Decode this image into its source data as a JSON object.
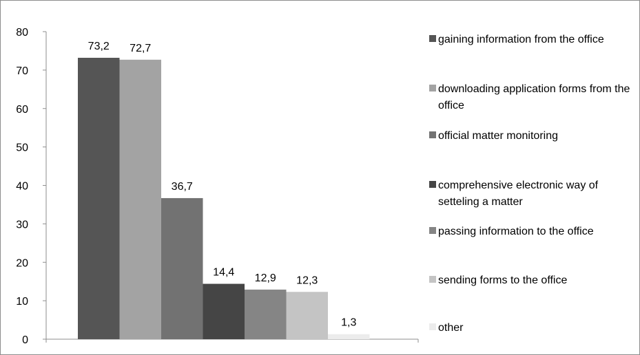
{
  "chart_data": {
    "type": "bar",
    "title": "",
    "xlabel": "",
    "ylabel": "",
    "ylim": [
      0,
      80
    ],
    "yticks": [
      0,
      10,
      20,
      30,
      40,
      50,
      60,
      70,
      80
    ],
    "grid": false,
    "legend_position": "right",
    "categories": [
      ""
    ],
    "series": [
      {
        "name": "gaining information from the office",
        "values": [
          73.2
        ],
        "label": "73,2",
        "color": "#555555"
      },
      {
        "name": "downloading application forms from the office",
        "values": [
          72.7
        ],
        "label": "72,7",
        "color": "#a3a3a3"
      },
      {
        "name": "official matter monitoring",
        "values": [
          36.7
        ],
        "label": "36,7",
        "color": "#727272"
      },
      {
        "name": "comprehensive electronic way of setteling a matter",
        "values": [
          14.4
        ],
        "label": "14,4",
        "color": "#454545"
      },
      {
        "name": "passing information to the office",
        "values": [
          12.9
        ],
        "label": "12,9",
        "color": "#858585"
      },
      {
        "name": "sending forms to the office",
        "values": [
          12.3
        ],
        "label": "12,3",
        "color": "#c4c4c4"
      },
      {
        "name": "other",
        "values": [
          1.3
        ],
        "label": "1,3",
        "color": "#ececec"
      }
    ]
  }
}
